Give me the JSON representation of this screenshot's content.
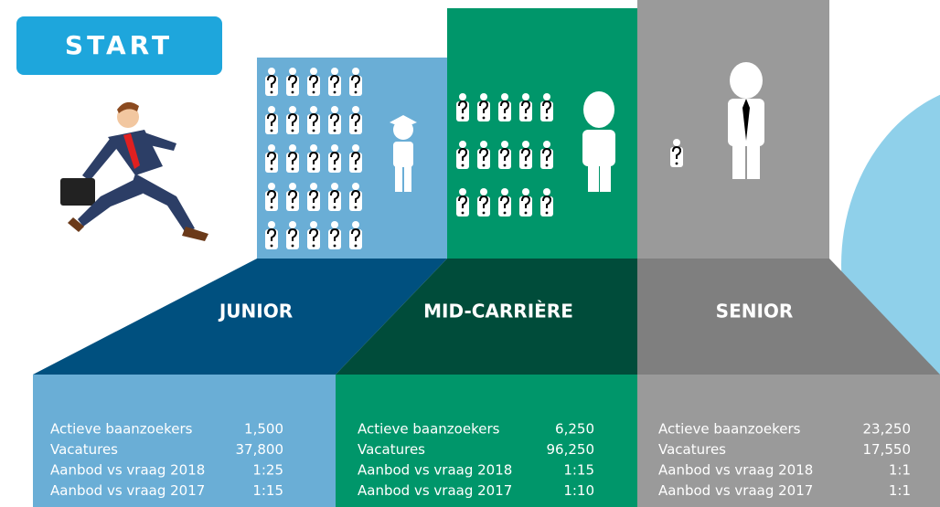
{
  "start_button": "START",
  "levels": [
    {
      "title": "JUNIOR",
      "stats": [
        {
          "label": "Actieve baanzoekers",
          "value": "1,500"
        },
        {
          "label": "Vacatures",
          "value": "37,800"
        },
        {
          "label": "Aanbod vs vraag 2018",
          "value": "1:25"
        },
        {
          "label": "Aanbod vs vraag 2017",
          "value": "1:15"
        }
      ]
    },
    {
      "title": "MID-CARRIÈRE",
      "stats": [
        {
          "label": "Actieve baanzoekers",
          "value": "6,250"
        },
        {
          "label": "Vacatures",
          "value": "96,250"
        },
        {
          "label": "Aanbod vs vraag 2018",
          "value": "1:15"
        },
        {
          "label": "Aanbod vs vraag 2017",
          "value": "1:10"
        }
      ]
    },
    {
      "title": "SENIOR",
      "stats": [
        {
          "label": "Actieve baanzoekers",
          "value": "23,250"
        },
        {
          "label": "Vacatures",
          "value": "17,550"
        },
        {
          "label": "Aanbod vs vraag 2018",
          "value": "1:1"
        },
        {
          "label": "Aanbod vs vraag 2017",
          "value": "1:1"
        }
      ]
    }
  ]
}
